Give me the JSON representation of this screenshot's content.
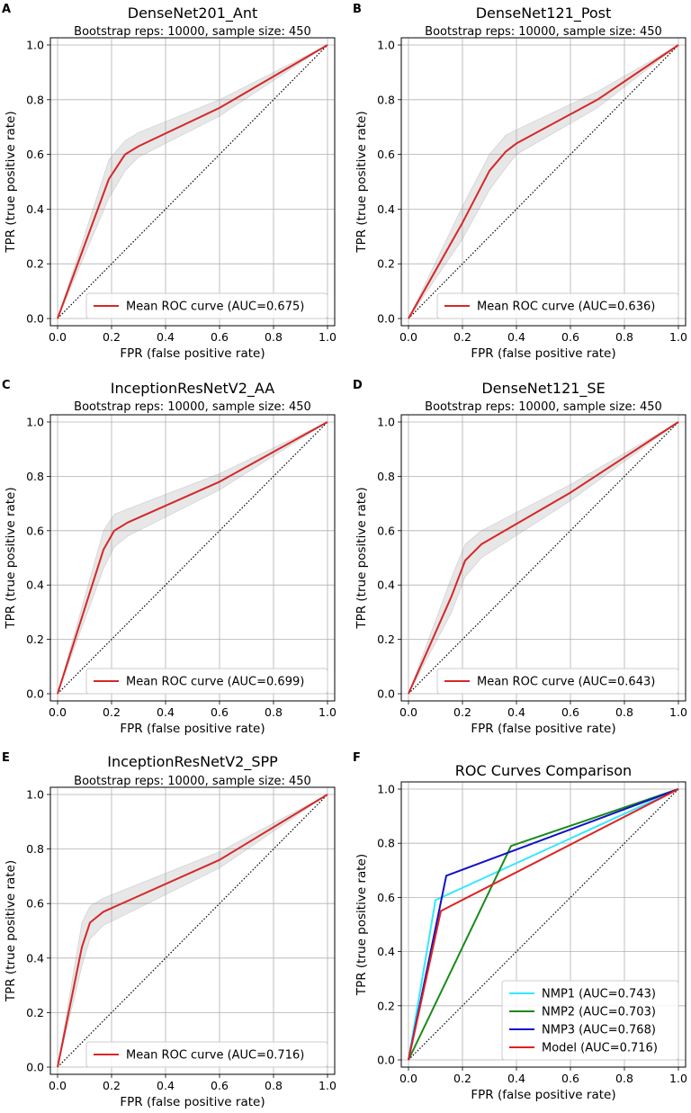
{
  "chart_data": [
    {
      "type": "line",
      "panel": "A",
      "title": "DenseNet201_Ant",
      "subtitle": "Bootstrap reps: 10000, sample size: 450",
      "xlabel": "FPR (false positive rate)",
      "ylabel": "TPR (true positive rate)",
      "xlim": [
        0,
        1
      ],
      "ylim": [
        0,
        1
      ],
      "ticks": [
        "0.0",
        "0.2",
        "0.4",
        "0.6",
        "0.8",
        "1.0"
      ],
      "grid": true,
      "legend_position": "lower-right",
      "series": [
        {
          "name": "Mean ROC curve (AUC=0.675)",
          "color": "#d62728",
          "x": [
            0,
            0.19,
            0.25,
            0.3,
            0.6,
            1.0
          ],
          "y": [
            0,
            0.51,
            0.6,
            0.63,
            0.77,
            1.0
          ],
          "band_upper": [
            0,
            0.58,
            0.65,
            0.68,
            0.8,
            1.0
          ],
          "band_lower": [
            0,
            0.44,
            0.54,
            0.59,
            0.74,
            1.0
          ]
        }
      ],
      "diagonal": true
    },
    {
      "type": "line",
      "panel": "B",
      "title": "DenseNet121_Post",
      "subtitle": "Bootstrap reps: 10000, sample size: 450",
      "xlabel": "FPR (false positive rate)",
      "ylabel": "TPR (true positive rate)",
      "xlim": [
        0,
        1
      ],
      "ylim": [
        0,
        1
      ],
      "ticks": [
        "0.0",
        "0.2",
        "0.4",
        "0.6",
        "0.8",
        "1.0"
      ],
      "grid": true,
      "legend_position": "lower-right",
      "series": [
        {
          "name": "Mean ROC curve (AUC=0.636)",
          "color": "#d62728",
          "x": [
            0,
            0.2,
            0.3,
            0.36,
            0.4,
            0.7,
            1.0
          ],
          "y": [
            0,
            0.35,
            0.54,
            0.61,
            0.64,
            0.8,
            1.0
          ],
          "band_upper": [
            0,
            0.41,
            0.6,
            0.67,
            0.69,
            0.83,
            1.0
          ],
          "band_lower": [
            0,
            0.29,
            0.47,
            0.55,
            0.6,
            0.77,
            1.0
          ]
        }
      ],
      "diagonal": true
    },
    {
      "type": "line",
      "panel": "C",
      "title": "InceptionResNetV2_AA",
      "subtitle": "Bootstrap reps: 10000, sample size: 450",
      "xlabel": "FPR (false positive rate)",
      "ylabel": "TPR (true positive rate)",
      "xlim": [
        0,
        1
      ],
      "ylim": [
        0,
        1
      ],
      "ticks": [
        "0.0",
        "0.2",
        "0.4",
        "0.6",
        "0.8",
        "1.0"
      ],
      "grid": true,
      "legend_position": "lower-right",
      "series": [
        {
          "name": "Mean ROC curve (AUC=0.699)",
          "color": "#d62728",
          "x": [
            0,
            0.17,
            0.21,
            0.26,
            0.6,
            1.0
          ],
          "y": [
            0,
            0.53,
            0.6,
            0.63,
            0.78,
            1.0
          ],
          "band_upper": [
            0,
            0.6,
            0.66,
            0.68,
            0.81,
            1.0
          ],
          "band_lower": [
            0,
            0.46,
            0.54,
            0.58,
            0.75,
            1.0
          ]
        }
      ],
      "diagonal": true
    },
    {
      "type": "line",
      "panel": "D",
      "title": "DenseNet121_SE",
      "subtitle": "Bootstrap reps: 10000, sample size: 450",
      "xlabel": "FPR (false positive rate)",
      "ylabel": "TPR (true positive rate)",
      "xlim": [
        0,
        1
      ],
      "ylim": [
        0,
        1
      ],
      "ticks": [
        "0.0",
        "0.2",
        "0.4",
        "0.6",
        "0.8",
        "1.0"
      ],
      "grid": true,
      "legend_position": "lower-right",
      "series": [
        {
          "name": "Mean ROC curve (AUC=0.643)",
          "color": "#d62728",
          "x": [
            0,
            0.16,
            0.21,
            0.27,
            0.6,
            1.0
          ],
          "y": [
            0,
            0.36,
            0.49,
            0.55,
            0.74,
            1.0
          ],
          "band_upper": [
            0,
            0.43,
            0.55,
            0.6,
            0.77,
            1.0
          ],
          "band_lower": [
            0,
            0.3,
            0.43,
            0.5,
            0.71,
            1.0
          ]
        }
      ],
      "diagonal": true
    },
    {
      "type": "line",
      "panel": "E",
      "title": "InceptionResNetV2_SPP",
      "subtitle": "Bootstrap reps: 10000, sample size: 450",
      "xlabel": "FPR (false positive rate)",
      "ylabel": "TPR (true positive rate)",
      "xlim": [
        0,
        1
      ],
      "ylim": [
        0,
        1
      ],
      "ticks": [
        "0.0",
        "0.2",
        "0.4",
        "0.6",
        "0.8",
        "1.0"
      ],
      "grid": true,
      "legend_position": "lower-right",
      "series": [
        {
          "name": "Mean ROC curve (AUC=0.716)",
          "color": "#d62728",
          "x": [
            0,
            0.09,
            0.12,
            0.17,
            0.6,
            1.0
          ],
          "y": [
            0,
            0.44,
            0.53,
            0.57,
            0.76,
            1.0
          ],
          "band_upper": [
            0,
            0.53,
            0.59,
            0.62,
            0.79,
            1.0
          ],
          "band_lower": [
            0,
            0.37,
            0.47,
            0.52,
            0.73,
            1.0
          ]
        }
      ],
      "diagonal": true
    },
    {
      "type": "line",
      "panel": "F",
      "title": "ROC Curves Comparison",
      "subtitle": "",
      "xlabel": "FPR (false positive rate)",
      "ylabel": "TPR (true positive rate)",
      "xlim": [
        0,
        1
      ],
      "ylim": [
        0,
        1
      ],
      "ticks": [
        "0.0",
        "0.2",
        "0.4",
        "0.6",
        "0.8",
        "1.0"
      ],
      "grid": true,
      "legend_position": "lower-right",
      "series": [
        {
          "name": "NMP1 (AUC=0.743)",
          "color": "#33e8ff",
          "x": [
            0,
            0.1,
            1.0
          ],
          "y": [
            0,
            0.59,
            1.0
          ]
        },
        {
          "name": "NMP2 (AUC=0.703)",
          "color": "#1a8a1a",
          "x": [
            0,
            0.38,
            1.0
          ],
          "y": [
            0,
            0.79,
            1.0
          ]
        },
        {
          "name": "NMP3 (AUC=0.768)",
          "color": "#1010c8",
          "x": [
            0,
            0.14,
            1.0
          ],
          "y": [
            0,
            0.68,
            1.0
          ]
        },
        {
          "name": "Model (AUC=0.716)",
          "color": "#e02020",
          "x": [
            0,
            0.12,
            1.0
          ],
          "y": [
            0,
            0.55,
            1.0
          ]
        }
      ],
      "diagonal": true
    }
  ]
}
